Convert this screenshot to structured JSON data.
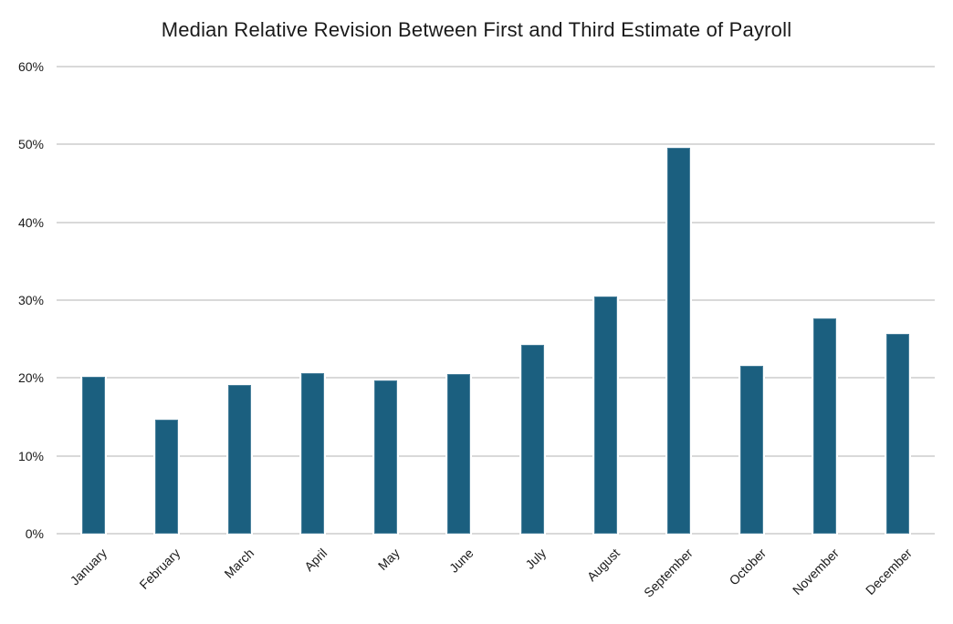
{
  "chart_data": {
    "type": "bar",
    "title": "Median Relative Revision Between First and Third Estimate of Payroll",
    "categories": [
      "January",
      "February",
      "March",
      "April",
      "May",
      "June",
      "July",
      "August",
      "September",
      "October",
      "November",
      "December"
    ],
    "values": [
      20.2,
      14.6,
      19.1,
      20.6,
      19.7,
      20.5,
      24.3,
      30.5,
      49.6,
      21.6,
      27.6,
      25.7
    ],
    "unit": "%",
    "xlabel": "",
    "ylabel": "",
    "ylim": [
      0,
      60
    ],
    "ytick_labels_top_to_bottom": [
      "60%",
      "50%",
      "40%",
      "30%",
      "20%",
      "10%",
      "0%"
    ],
    "grid": "horizontal",
    "legend": "none",
    "bar_color": "#1b5f7f",
    "gridline_color": "#d9d9d9",
    "background_color": "#ffffff",
    "text_color": "#1a1a1a"
  }
}
